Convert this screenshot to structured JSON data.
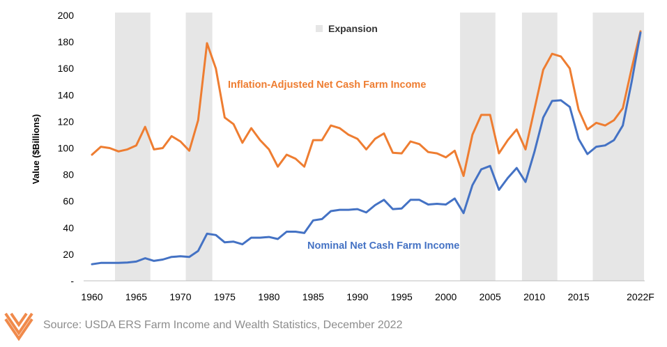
{
  "source_text": "Source: USDA ERS Farm Income and Wealth Statistics, December 2022",
  "logo": {
    "icon": "chevron-stripes-logo",
    "color": "#f08a4b"
  },
  "chart_data": {
    "type": "line",
    "title": "",
    "xlabel": "",
    "ylabel": "Value ($Billions)",
    "xlim": [
      1960,
      2022
    ],
    "ylim": [
      0,
      200
    ],
    "grid": false,
    "legend": {
      "label": "Expansion",
      "placement": "top-center"
    },
    "x_ticks": [
      {
        "value": 1960,
        "label": "1960"
      },
      {
        "value": 1965,
        "label": "1965"
      },
      {
        "value": 1970,
        "label": "1970"
      },
      {
        "value": 1975,
        "label": "1975"
      },
      {
        "value": 1980,
        "label": "1980"
      },
      {
        "value": 1985,
        "label": "1985"
      },
      {
        "value": 1990,
        "label": "1990"
      },
      {
        "value": 1995,
        "label": "1995"
      },
      {
        "value": 2000,
        "label": "2000"
      },
      {
        "value": 2005,
        "label": "2005"
      },
      {
        "value": 2010,
        "label": "2010"
      },
      {
        "value": 2015,
        "label": "2015"
      },
      {
        "value": 2022,
        "label": "2022F"
      }
    ],
    "y_ticks": [
      {
        "value": 0,
        "label": "-"
      },
      {
        "value": 20,
        "label": "20"
      },
      {
        "value": 40,
        "label": "40"
      },
      {
        "value": 60,
        "label": "60"
      },
      {
        "value": 80,
        "label": "80"
      },
      {
        "value": 100,
        "label": "100"
      },
      {
        "value": 120,
        "label": "120"
      },
      {
        "value": 140,
        "label": "140"
      },
      {
        "value": 160,
        "label": "160"
      },
      {
        "value": 180,
        "label": "180"
      },
      {
        "value": 200,
        "label": "200"
      }
    ],
    "expansion_periods": [
      [
        1962.6,
        1966.6
      ],
      [
        1970.6,
        1973.6
      ],
      [
        2001.6,
        2005.6
      ],
      [
        2008.6,
        2012.6
      ],
      [
        2016.6,
        2022.4
      ]
    ],
    "expansion_color": "#e6e6e6",
    "x": [
      1960,
      1961,
      1962,
      1963,
      1964,
      1965,
      1966,
      1967,
      1968,
      1969,
      1970,
      1971,
      1972,
      1973,
      1974,
      1975,
      1976,
      1977,
      1978,
      1979,
      1980,
      1981,
      1982,
      1983,
      1984,
      1985,
      1986,
      1987,
      1988,
      1989,
      1990,
      1991,
      1992,
      1993,
      1994,
      1995,
      1996,
      1997,
      1998,
      1999,
      2000,
      2001,
      2002,
      2003,
      2004,
      2005,
      2006,
      2007,
      2008,
      2009,
      2010,
      2011,
      2012,
      2013,
      2014,
      2015,
      2016,
      2017,
      2018,
      2019,
      2020,
      2021,
      2022
    ],
    "series": [
      {
        "name": "Inflation-Adjusted Net Cash Farm Income",
        "color": "#ee7d31",
        "values": [
          95,
          101,
          100,
          97.5,
          99,
          102,
          116,
          99,
          100,
          109,
          105,
          98,
          121,
          179,
          160,
          123,
          118,
          104,
          115,
          106,
          99,
          86,
          95,
          92,
          86,
          106,
          106,
          117,
          115,
          110,
          107,
          99,
          107,
          111,
          96.5,
          96,
          105,
          103,
          97,
          96,
          93,
          98,
          79,
          110,
          125,
          125,
          96,
          106,
          114,
          99,
          129,
          159,
          171,
          169,
          160,
          129,
          114,
          119,
          117,
          121,
          130,
          160,
          188
        ]
      },
      {
        "name": "Nominal Net Cash Farm Income",
        "color": "#4472c4",
        "values": [
          12.5,
          13.5,
          13.5,
          13.5,
          13.8,
          14.5,
          17,
          15,
          16,
          18,
          18.5,
          18,
          22.5,
          35.5,
          34.5,
          29,
          29.5,
          27.5,
          32.5,
          32.5,
          33,
          31.5,
          37,
          37,
          36,
          45.5,
          46.5,
          52.5,
          53.5,
          53.5,
          54,
          51.5,
          57,
          61,
          54,
          54.5,
          61,
          61,
          57.5,
          58,
          57.5,
          62,
          51,
          72,
          84,
          86.5,
          68.5,
          77.5,
          85,
          74.5,
          97,
          123,
          135.5,
          136,
          131,
          107,
          95.5,
          101,
          102,
          106,
          117,
          150,
          187
        ]
      }
    ]
  }
}
